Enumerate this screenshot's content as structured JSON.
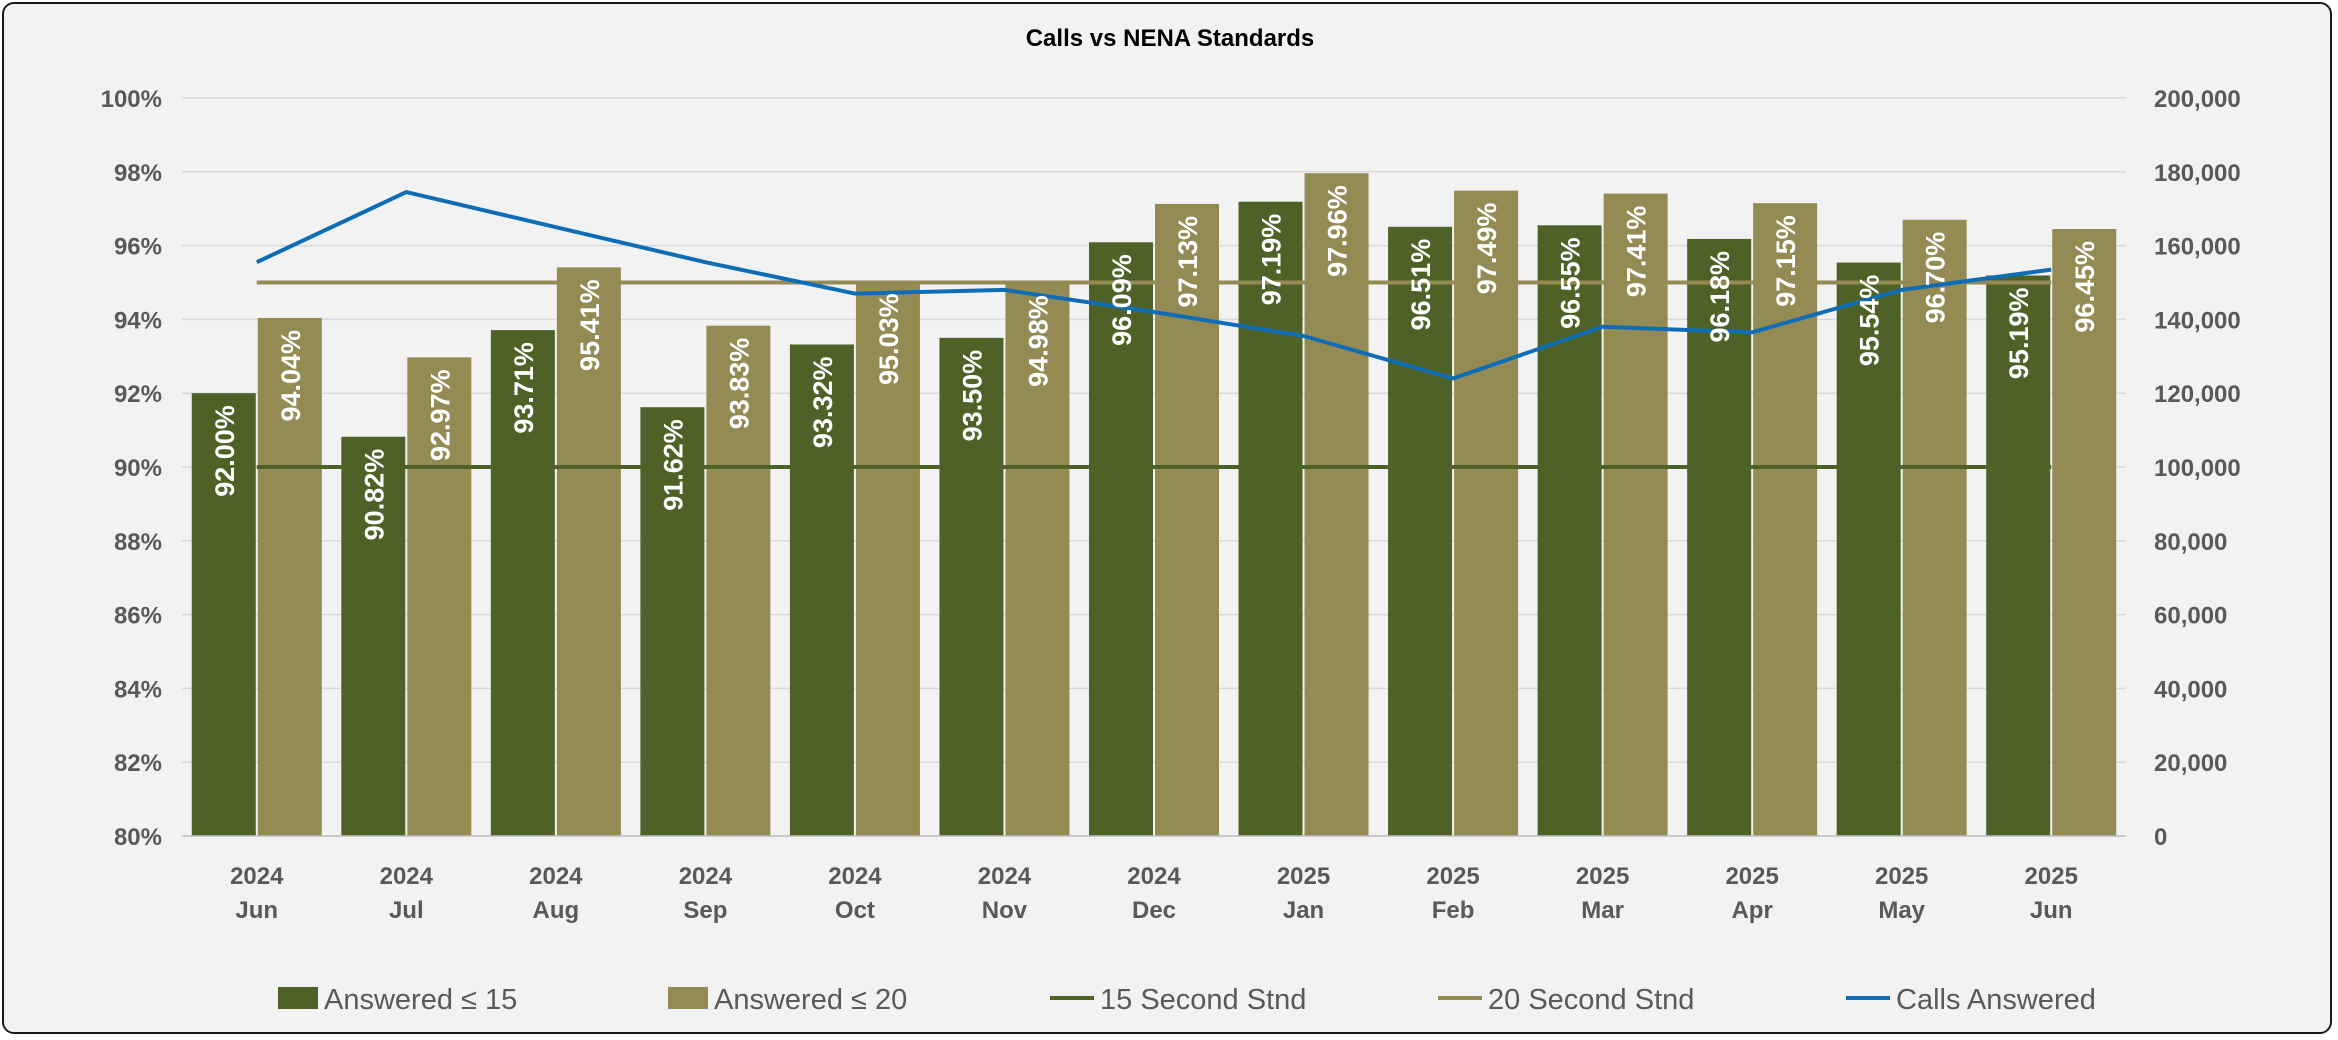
{
  "chart_data": {
    "type": "bar",
    "title": "Calls vs NENA Standards",
    "categories": [
      [
        "2024",
        "Jun"
      ],
      [
        "2024",
        "Jul"
      ],
      [
        "2024",
        "Aug"
      ],
      [
        "2024",
        "Sep"
      ],
      [
        "2024",
        "Oct"
      ],
      [
        "2024",
        "Nov"
      ],
      [
        "2024",
        "Dec"
      ],
      [
        "2025",
        "Jan"
      ],
      [
        "2025",
        "Feb"
      ],
      [
        "2025",
        "Mar"
      ],
      [
        "2025",
        "Apr"
      ],
      [
        "2025",
        "May"
      ],
      [
        "2025",
        "Jun"
      ]
    ],
    "y_left": {
      "min": 80,
      "max": 100,
      "step": 2,
      "ticks": [
        "80%",
        "82%",
        "84%",
        "86%",
        "88%",
        "90%",
        "92%",
        "94%",
        "96%",
        "98%",
        "100%"
      ]
    },
    "y_right": {
      "min": 0,
      "max": 200000,
      "step": 20000,
      "ticks": [
        "0",
        "20,000",
        "40,000",
        "60,000",
        "80,000",
        "100,000",
        "120,000",
        "140,000",
        "160,000",
        "180,000",
        "200,000"
      ]
    },
    "grid": true,
    "legend_position": "bottom",
    "series": [
      {
        "name": "Answered ≤ 15",
        "type": "bar",
        "axis": "left",
        "color": "#4e6228",
        "values": [
          92.0,
          90.82,
          93.71,
          91.62,
          93.32,
          93.5,
          96.09,
          97.19,
          96.51,
          96.55,
          96.18,
          95.54,
          95.19
        ],
        "labels": [
          "92.00%",
          "90.82%",
          "93.71%",
          "91.62%",
          "93.32%",
          "93.50%",
          "96.09%",
          "97.19%",
          "96.51%",
          "96.55%",
          "96.18%",
          "95.54%",
          "95.19%"
        ]
      },
      {
        "name": "Answered ≤ 20",
        "type": "bar",
        "axis": "left",
        "color": "#948a54",
        "values": [
          94.04,
          92.97,
          95.41,
          93.83,
          95.03,
          94.98,
          97.13,
          97.96,
          97.49,
          97.41,
          97.15,
          96.7,
          96.45
        ],
        "labels": [
          "94.04%",
          "92.97%",
          "95.41%",
          "93.83%",
          "95.03%",
          "94.98%",
          "97.13%",
          "97.96%",
          "97.49%",
          "97.41%",
          "97.15%",
          "96.70%",
          "96.45%"
        ]
      },
      {
        "name": "15 Second Stnd",
        "type": "line",
        "axis": "left",
        "color": "#4e6228",
        "values": [
          90,
          90,
          90,
          90,
          90,
          90,
          90,
          90,
          90,
          90,
          90,
          90,
          90
        ]
      },
      {
        "name": "20 Second Stnd",
        "type": "line",
        "axis": "left",
        "color": "#948a54",
        "values": [
          95,
          95,
          95,
          95,
          95,
          95,
          95,
          95,
          95,
          95,
          95,
          95,
          95
        ]
      },
      {
        "name": "Calls Answered",
        "type": "line",
        "axis": "right",
        "color": "#0f6db5",
        "values": [
          155500,
          174500,
          165000,
          155500,
          147000,
          148000,
          142000,
          135500,
          124000,
          138000,
          136500,
          148000,
          153500
        ]
      }
    ]
  }
}
